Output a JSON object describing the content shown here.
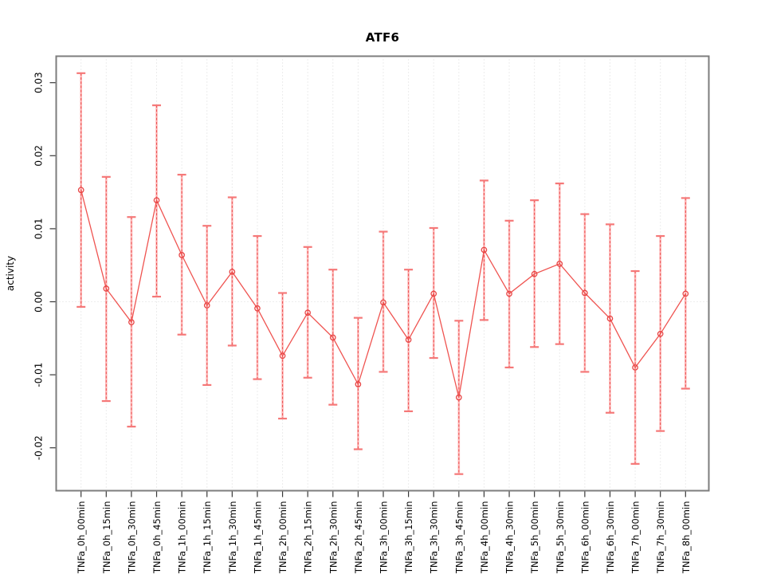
{
  "window": {
    "background": "#ffffff"
  },
  "chart_data": {
    "type": "line",
    "title": "ATF6",
    "xlabel": "",
    "ylabel": "activity",
    "ylim": [
      -0.026,
      0.0336
    ],
    "yticks": [
      "0.03",
      "0.02",
      "0.01",
      "0.00",
      "-0.01",
      "-0.02"
    ],
    "ytick_values": [
      0.03,
      0.02,
      0.01,
      0.0,
      -0.01,
      -0.02
    ],
    "grid": {
      "vertical_dotted_per_category": true,
      "zero_line_dotted": true
    },
    "legend": "none",
    "marker": "open-circle",
    "error_bars": true,
    "categories": [
      "TNFa_0h_00min",
      "TNFa_0h_15min",
      "TNFa_0h_30min",
      "TNFa_0h_45min",
      "TNFa_1h_00min",
      "TNFa_1h_15min",
      "TNFa_1h_30min",
      "TNFa_1h_45min",
      "TNFa_2h_00min",
      "TNFa_2h_15min",
      "TNFa_2h_30min",
      "TNFa_2h_45min",
      "TNFa_3h_00min",
      "TNFa_3h_15min",
      "TNFa_3h_30min",
      "TNFa_3h_45min",
      "TNFa_4h_00min",
      "TNFa_4h_30min",
      "TNFa_5h_00min",
      "TNFa_5h_30min",
      "TNFa_6h_00min",
      "TNFa_6h_30min",
      "TNFa_7h_00min",
      "TNFa_7h_30min",
      "TNFa_8h_00min"
    ],
    "series": [
      {
        "name": "activity",
        "values": [
          0.0153,
          0.0018,
          -0.0028,
          0.0139,
          0.0064,
          -0.0005,
          0.0041,
          -0.0009,
          -0.0074,
          -0.0015,
          -0.0049,
          -0.0113,
          -0.0001,
          -0.0052,
          0.0011,
          -0.0131,
          0.0071,
          0.0011,
          0.0038,
          0.0052,
          0.0012,
          -0.0023,
          -0.009,
          -0.0044,
          0.0011
        ],
        "upper": [
          0.0313,
          0.0171,
          0.0116,
          0.0269,
          0.0174,
          0.0104,
          0.0143,
          0.009,
          0.0012,
          0.0075,
          0.0044,
          -0.0022,
          0.0096,
          0.0044,
          0.0101,
          -0.0026,
          0.0166,
          0.0111,
          0.0139,
          0.0162,
          0.012,
          0.0106,
          0.0042,
          0.009,
          0.0142
        ],
        "lower": [
          -0.0007,
          -0.0136,
          -0.0171,
          0.0007,
          -0.0045,
          -0.0114,
          -0.006,
          -0.0106,
          -0.016,
          -0.0104,
          -0.0141,
          -0.0202,
          -0.0096,
          -0.015,
          -0.0077,
          -0.0236,
          -0.0025,
          -0.009,
          -0.0062,
          -0.0058,
          -0.0096,
          -0.0152,
          -0.0222,
          -0.0177,
          -0.0119
        ]
      }
    ],
    "colors": {
      "point": "#e84545",
      "line": "#ef5350",
      "error_bar_core": "#e84545",
      "error_bar_halo": "#ffaaaa",
      "error_bar_cap": "#f57878",
      "grid": "#d9d9d9",
      "zero_line": "#dedede",
      "box": "#7d7d7d",
      "tick": "#383838",
      "text": "#000000"
    }
  }
}
